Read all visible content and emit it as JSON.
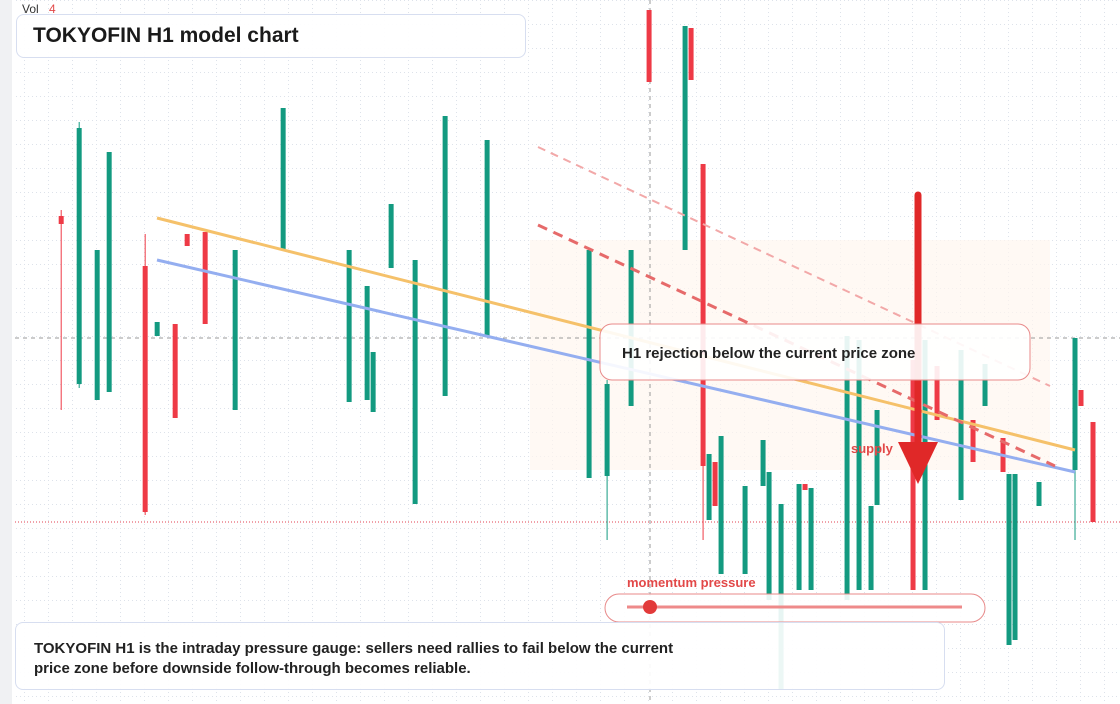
{
  "chart_data": {
    "type": "candlestick",
    "title": "TOKYOFIN H1 model chart",
    "volume_label": "Vol",
    "volume_value": "4",
    "callout": "H1 rejection below the current price zone",
    "zone_label": "supply",
    "gauge_label": "momentum pressure",
    "caption": "TOKYOFIN H1 is the intraday pressure gauge: sellers need rallies to fail below the current price zone before downside follow-through becomes reliable.",
    "up_color": "#139a80",
    "down_color": "#ee3a46",
    "xlim": [
      -7.7,
      176.5
    ],
    "ylim": [
      0,
      704
    ],
    "x": [
      0,
      3,
      6,
      8,
      14,
      16,
      19,
      21,
      24,
      29,
      37,
      48,
      51,
      52,
      55,
      59,
      64,
      71,
      88,
      91,
      95,
      98,
      104,
      105,
      107,
      108,
      109,
      110,
      114,
      117,
      118,
      120,
      123,
      124,
      125,
      131,
      133,
      135,
      136,
      142,
      144,
      146,
      150,
      152,
      154,
      157,
      158,
      159,
      163,
      169,
      170,
      172
    ],
    "open": [
      488,
      320,
      304,
      312,
      438,
      368,
      380,
      470,
      472,
      294,
      454,
      302,
      304,
      292,
      436,
      200,
      308,
      368,
      226,
      228,
      298,
      694,
      454,
      676,
      540,
      184,
      242,
      130,
      130,
      218,
      104,
      14,
      114,
      220,
      114,
      104,
      114,
      114,
      199,
      344,
      114,
      338,
      204,
      284,
      298,
      266,
      59,
      64,
      198,
      234,
      314,
      282
    ],
    "high": [
      494,
      582,
      454,
      552,
      470,
      382,
      380,
      470,
      472,
      454,
      596,
      454,
      418,
      352,
      500,
      444,
      588,
      564,
      454,
      324,
      454,
      694,
      678,
      676,
      540,
      250,
      242,
      268,
      218,
      264,
      232,
      200,
      220,
      220,
      216,
      368,
      364,
      198,
      294,
      344,
      364,
      338,
      354,
      284,
      340,
      266,
      230,
      230,
      222,
      366,
      314,
      282
    ],
    "low": [
      294,
      316,
      304,
      312,
      189,
      368,
      286,
      458,
      380,
      294,
      454,
      302,
      304,
      292,
      436,
      200,
      308,
      368,
      226,
      164,
      298,
      622,
      454,
      624,
      164,
      184,
      198,
      130,
      130,
      218,
      104,
      14,
      114,
      214,
      114,
      104,
      114,
      114,
      199,
      114,
      114,
      284,
      204,
      242,
      298,
      232,
      59,
      64,
      198,
      164,
      298,
      182
    ],
    "close": [
      480,
      576,
      454,
      552,
      192,
      382,
      286,
      458,
      380,
      454,
      596,
      454,
      418,
      352,
      500,
      444,
      588,
      564,
      454,
      320,
      454,
      622,
      678,
      624,
      238,
      250,
      198,
      268,
      218,
      264,
      232,
      200,
      220,
      214,
      216,
      368,
      364,
      198,
      294,
      114,
      364,
      284,
      354,
      242,
      340,
      232,
      230,
      230,
      222,
      366,
      298,
      182
    ]
  }
}
